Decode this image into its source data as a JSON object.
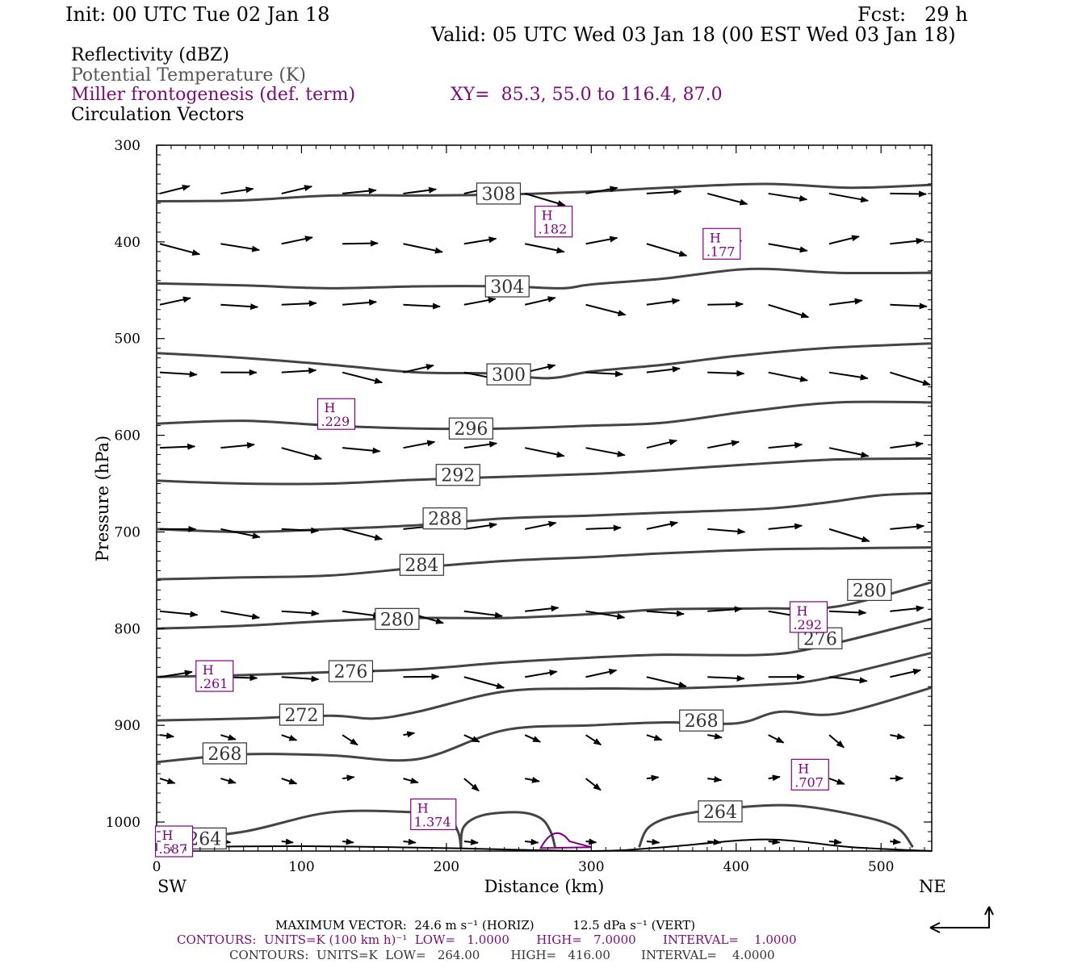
{
  "header": {
    "init": "Init: 00 UTC Tue 02 Jan 18",
    "fcst": "Fcst:   29 h",
    "valid": "Valid: 05 UTC Wed 03 Jan 18 (00 EST Wed 03 Jan 18)"
  },
  "legend": {
    "reflectivity": "Reflectivity (dBZ)",
    "theta": "Potential Temperature (K)",
    "miller": "Miller frontogenesis (def. term)",
    "xy": "XY=  85.3, 55.0 to 116.4, 87.0",
    "circulation": "Circulation Vectors"
  },
  "footer": {
    "max_vector": "MAXIMUM VECTOR:  24.6 m s⁻¹ (HORIZ)          12.5 dPa s⁻¹ (VERT)",
    "contours_miller": "CONTOURS:  UNITS=K (100 km h)⁻¹  LOW=   1.0000       HIGH=   7.0000       INTERVAL=    1.0000",
    "contours_theta": "CONTOURS:  UNITS=K  LOW=   264.00        HIGH=   416.00        INTERVAL=    4.0000"
  },
  "colors": {
    "theta": "#444444",
    "miller": "#800080",
    "vector": "#000000"
  },
  "chart_data": {
    "type": "line",
    "title": "",
    "xlabel": "Distance (km)",
    "ylabel": "Pressure (hPa)",
    "xlim": [
      0,
      535
    ],
    "ylim": [
      300,
      1030
    ],
    "y_inverted": true,
    "x_ticks": [
      0,
      100,
      200,
      300,
      400,
      500
    ],
    "y_ticks": [
      300,
      400,
      500,
      600,
      700,
      800,
      900,
      1000
    ],
    "x_end_labels": {
      "left": "SW",
      "right": "NE"
    },
    "theta_contours": [
      {
        "label": "308",
        "label_at": [
          236,
          350
        ],
        "points": [
          [
            0,
            358
          ],
          [
            60,
            357
          ],
          [
            120,
            352
          ],
          [
            180,
            352
          ],
          [
            240,
            351
          ],
          [
            300,
            348
          ],
          [
            350,
            344
          ],
          [
            420,
            340
          ],
          [
            480,
            344
          ],
          [
            535,
            341
          ]
        ]
      },
      {
        "label": "304",
        "label_at": [
          242,
          446
        ],
        "points": [
          [
            0,
            443
          ],
          [
            60,
            445
          ],
          [
            120,
            448
          ],
          [
            180,
            446
          ],
          [
            240,
            446
          ],
          [
            280,
            448
          ],
          [
            300,
            444
          ],
          [
            350,
            438
          ],
          [
            410,
            428
          ],
          [
            470,
            432
          ],
          [
            535,
            432
          ]
        ]
      },
      {
        "label": "300",
        "label_at": [
          243,
          537
        ],
        "points": [
          [
            0,
            515
          ],
          [
            60,
            520
          ],
          [
            120,
            527
          ],
          [
            180,
            535
          ],
          [
            230,
            536
          ],
          [
            270,
            541
          ],
          [
            300,
            534
          ],
          [
            350,
            527
          ],
          [
            400,
            518
          ],
          [
            460,
            510
          ],
          [
            535,
            505
          ]
        ]
      },
      {
        "label": "296",
        "label_at": [
          217,
          593
        ],
        "points": [
          [
            0,
            588
          ],
          [
            60,
            585
          ],
          [
            120,
            590
          ],
          [
            180,
            593
          ],
          [
            240,
            593
          ],
          [
            300,
            590
          ],
          [
            350,
            587
          ],
          [
            410,
            575
          ],
          [
            470,
            566
          ],
          [
            535,
            566
          ]
        ]
      },
      {
        "label": "292",
        "label_at": [
          208,
          641
        ],
        "points": [
          [
            0,
            647
          ],
          [
            60,
            650
          ],
          [
            120,
            650
          ],
          [
            180,
            646
          ],
          [
            240,
            643
          ],
          [
            300,
            640
          ],
          [
            350,
            636
          ],
          [
            410,
            630
          ],
          [
            470,
            625
          ],
          [
            535,
            624
          ]
        ]
      },
      {
        "label": "288",
        "label_at": [
          199,
          686
        ],
        "points": [
          [
            0,
            697
          ],
          [
            60,
            700
          ],
          [
            120,
            697
          ],
          [
            180,
            693
          ],
          [
            240,
            686
          ],
          [
            300,
            683
          ],
          [
            350,
            680
          ],
          [
            420,
            676
          ],
          [
            460,
            670
          ],
          [
            500,
            662
          ],
          [
            535,
            660
          ]
        ]
      },
      {
        "label": "284",
        "label_at": [
          183,
          734
        ],
        "points": [
          [
            0,
            749
          ],
          [
            60,
            747
          ],
          [
            120,
            745
          ],
          [
            180,
            737
          ],
          [
            240,
            730
          ],
          [
            300,
            726
          ],
          [
            350,
            722
          ],
          [
            420,
            718
          ],
          [
            470,
            717
          ],
          [
            535,
            716
          ]
        ]
      },
      {
        "label": "280",
        "label_at": [
          166,
          790
        ],
        "points": [
          [
            0,
            800
          ],
          [
            60,
            797
          ],
          [
            120,
            792
          ],
          [
            180,
            789
          ],
          [
            240,
            789
          ],
          [
            300,
            785
          ],
          [
            350,
            780
          ],
          [
            420,
            779
          ],
          [
            470,
            777
          ],
          [
            535,
            752
          ]
        ]
      },
      {
        "label": "280",
        "label_at": [
          492,
          760
        ],
        "points": []
      },
      {
        "label": "276",
        "label_at": [
          134,
          844
        ],
        "points": [
          [
            0,
            850
          ],
          [
            60,
            848
          ],
          [
            120,
            845
          ],
          [
            180,
            842
          ],
          [
            240,
            835
          ],
          [
            300,
            830
          ],
          [
            350,
            827
          ],
          [
            420,
            827
          ],
          [
            460,
            818
          ],
          [
            535,
            790
          ]
        ]
      },
      {
        "label": "276",
        "label_at": [
          458,
          810
        ],
        "points": []
      },
      {
        "label": "272",
        "label_at": [
          100,
          889
        ],
        "points": [
          [
            0,
            895
          ],
          [
            60,
            893
          ],
          [
            120,
            890
          ],
          [
            150,
            893
          ],
          [
            180,
            886
          ],
          [
            240,
            865
          ],
          [
            300,
            862
          ],
          [
            350,
            862
          ],
          [
            420,
            858
          ],
          [
            460,
            852
          ],
          [
            535,
            825
          ]
        ]
      },
      {
        "label": "268",
        "label_at": [
          376,
          895
        ],
        "points": [
          [
            0,
            938
          ],
          [
            60,
            930
          ],
          [
            120,
            931
          ],
          [
            180,
            935
          ],
          [
            240,
            905
          ],
          [
            300,
            900
          ],
          [
            350,
            897
          ],
          [
            400,
            898
          ],
          [
            430,
            886
          ],
          [
            470,
            888
          ],
          [
            535,
            861
          ]
        ]
      },
      {
        "label": "268",
        "label_at": [
          47,
          929
        ],
        "points": []
      },
      {
        "label": "264",
        "label_at": [
          389,
          989
        ],
        "points": [
          [
            0,
            1020
          ],
          [
            60,
            1010
          ],
          [
            120,
            990
          ],
          [
            180,
            990
          ],
          [
            200,
            993
          ],
          [
            208,
            1010
          ],
          [
            210,
            1026
          ]
        ]
      },
      {
        "label": "264",
        "label_at": [
          33,
          1017
        ],
        "points": []
      }
    ],
    "surface": [
      [
        0,
        1026
      ],
      [
        100,
        1025
      ],
      [
        200,
        1027
      ],
      [
        300,
        1030
      ],
      [
        350,
        1026
      ],
      [
        420,
        1018
      ],
      [
        480,
        1026
      ],
      [
        535,
        1030
      ]
    ],
    "frontogenesis_highs": [
      {
        "label": "H",
        "value": ".182",
        "at": [
          274,
          379
        ]
      },
      {
        "label": "H",
        "value": ".177",
        "at": [
          390,
          402
        ]
      },
      {
        "label": "H",
        "value": ".229",
        "at": [
          124,
          578
        ]
      },
      {
        "label": "H",
        "value": ".292",
        "at": [
          450,
          788
        ]
      },
      {
        "label": "H",
        "value": ".261",
        "at": [
          40,
          849
        ]
      },
      {
        "label": "H",
        "value": ".707",
        "at": [
          451,
          951
        ]
      },
      {
        "label": "H",
        "value": "1.374",
        "at": [
          191,
          992
        ]
      },
      {
        "label": "H",
        "value": ".587",
        "at": [
          12,
          1020
        ]
      }
    ],
    "vector_rows_hPa": [
      350,
      402,
      465,
      535,
      613,
      697,
      782,
      850,
      910,
      955,
      1020
    ],
    "vector_x_km": [
      0,
      42,
      84,
      126,
      168,
      210,
      252,
      294,
      336,
      378,
      420,
      462,
      504
    ],
    "max_vector": {
      "horiz_m_s": 24.6,
      "vert_dPa_s": 12.5
    }
  }
}
